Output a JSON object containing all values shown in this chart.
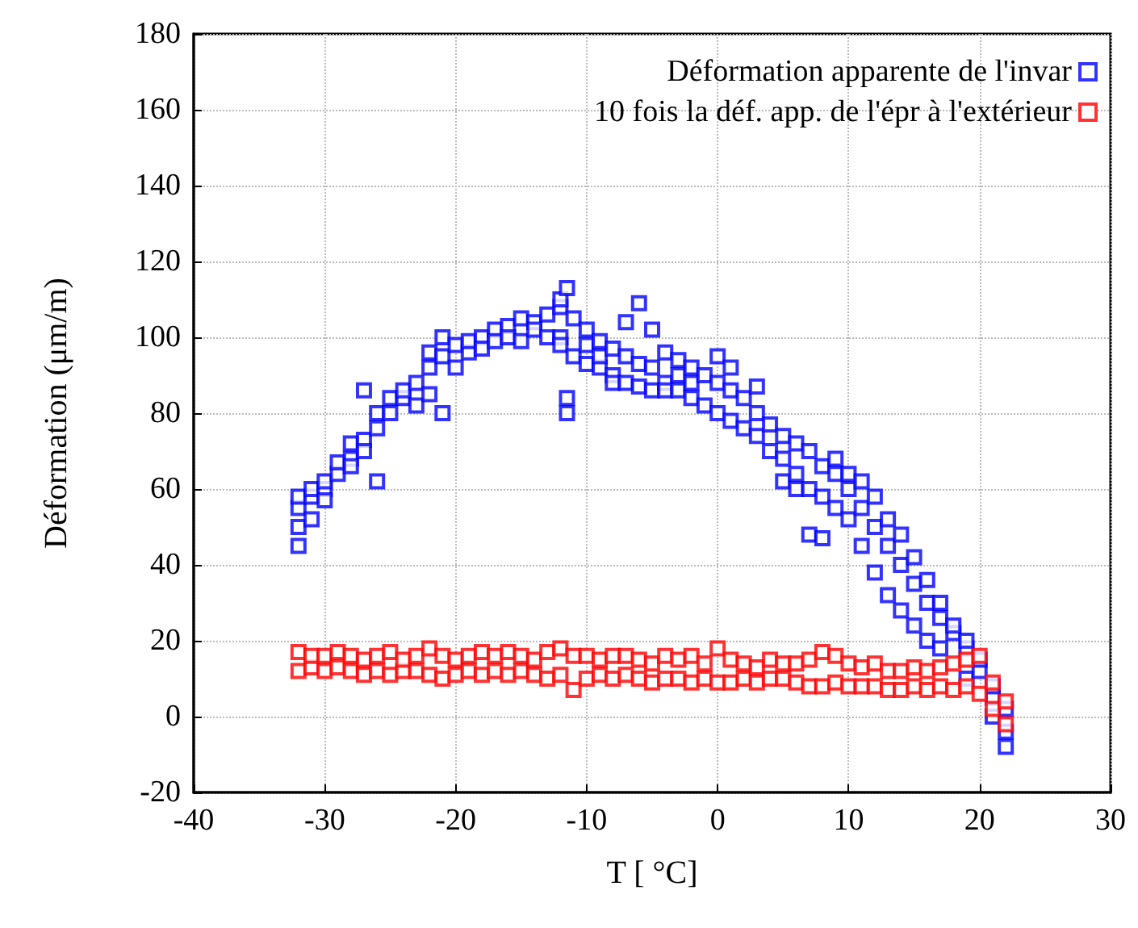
{
  "chart_data": {
    "type": "scatter",
    "xlabel": "T [ °C]",
    "ylabel": "Déformation (μm/m)",
    "xlim": [
      -40,
      30
    ],
    "xticks": [
      -40,
      -30,
      -20,
      -10,
      0,
      10,
      20,
      30
    ],
    "ylim": [
      -20,
      180
    ],
    "yticks": [
      -20,
      0,
      20,
      40,
      60,
      80,
      100,
      120,
      140,
      160,
      180
    ],
    "grid": true,
    "legend": "top right",
    "marker": "square",
    "series": [
      {
        "name": "Déformation apparente de l'invar",
        "color": "#0000ff",
        "x": [
          -32,
          -32,
          -32,
          -32,
          -31,
          -31,
          -31,
          -30,
          -30,
          -30,
          -29,
          -29,
          -28,
          -28,
          -28,
          -27,
          -27,
          -27,
          -26,
          -26,
          -26,
          -25,
          -25,
          -24,
          -24,
          -23,
          -23,
          -22,
          -22,
          -22,
          -21,
          -21,
          -21,
          -20,
          -20,
          -19,
          -19,
          -18,
          -18,
          -17,
          -17,
          -16,
          -16,
          -15,
          -15,
          -14,
          -14,
          -13,
          -13,
          -12,
          -12,
          -12,
          -12,
          -11.5,
          -11.5,
          -11.5,
          -11,
          -11,
          -10,
          -10,
          -10,
          -9,
          -9,
          -9,
          -8,
          -8,
          -8,
          -7,
          -7,
          -7,
          -6,
          -6,
          -6,
          -5,
          -5,
          -5,
          -4,
          -4,
          -4,
          -3,
          -3,
          -3,
          -2,
          -2,
          -2,
          -1,
          -1,
          0,
          0,
          0,
          1,
          1,
          1,
          2,
          2,
          3,
          3,
          3,
          4,
          4,
          5,
          5,
          5,
          6,
          6,
          6,
          7,
          7,
          7,
          8,
          8,
          8,
          9,
          9,
          9,
          10,
          10,
          10,
          11,
          11,
          11,
          12,
          12,
          12,
          13,
          13,
          13,
          14,
          14,
          14,
          15,
          15,
          15,
          16,
          16,
          16,
          17,
          17,
          17,
          18,
          18,
          19,
          19,
          19,
          20,
          20,
          21,
          21,
          21,
          22,
          22,
          22
        ],
        "values": [
          45,
          50,
          55,
          58,
          52,
          58,
          60,
          60,
          62,
          57,
          64,
          67,
          68,
          66,
          72,
          73,
          70,
          86,
          76,
          80,
          62,
          80,
          84,
          84,
          86,
          88,
          82,
          92,
          85,
          96,
          100,
          95,
          80,
          98,
          92,
          96,
          99,
          100,
          97,
          102,
          99,
          103,
          100,
          105,
          99,
          104,
          102,
          106,
          100,
          108,
          100,
          98,
          110,
          113,
          80,
          84,
          105,
          95,
          98,
          102,
          93,
          99,
          92,
          95,
          97,
          90,
          88,
          95,
          88,
          104,
          93,
          87,
          109,
          92,
          86,
          102,
          96,
          88,
          86,
          94,
          86,
          90,
          92,
          88,
          84,
          90,
          82,
          88,
          80,
          95,
          86,
          78,
          92,
          84,
          76,
          80,
          74,
          87,
          77,
          70,
          74,
          68,
          62,
          72,
          64,
          60,
          70,
          60,
          48,
          66,
          58,
          47,
          64,
          55,
          68,
          60,
          52,
          64,
          55,
          45,
          62,
          50,
          38,
          58,
          45,
          32,
          52,
          40,
          28,
          48,
          35,
          24,
          42,
          30,
          20,
          36,
          26,
          18,
          30,
          22,
          24,
          18,
          10,
          20,
          12,
          15,
          5,
          0,
          8,
          -4,
          -8,
          2
        ]
      },
      {
        "name": "10 fois la déf. app. de l'épr à l'extérieur",
        "color": "#ff0000",
        "x": [
          -32,
          -32,
          -31,
          -31,
          -30,
          -30,
          -29,
          -29,
          -28,
          -28,
          -27,
          -27,
          -26,
          -26,
          -25,
          -25,
          -24,
          -24,
          -23,
          -23,
          -22,
          -22,
          -21,
          -21,
          -20,
          -20,
          -19,
          -19,
          -18,
          -18,
          -17,
          -17,
          -16,
          -16,
          -15,
          -15,
          -14,
          -14,
          -13,
          -13,
          -12,
          -12,
          -11,
          -11,
          -10,
          -10,
          -9,
          -9,
          -8,
          -8,
          -7,
          -7,
          -6,
          -6,
          -5,
          -5,
          -4,
          -4,
          -3,
          -3,
          -2,
          -2,
          -1,
          -1,
          0,
          0,
          1,
          1,
          2,
          2,
          3,
          3,
          4,
          4,
          5,
          5,
          6,
          6,
          7,
          7,
          8,
          8,
          9,
          9,
          10,
          10,
          11,
          11,
          12,
          12,
          13,
          13,
          14,
          14,
          15,
          15,
          16,
          16,
          17,
          17,
          18,
          18,
          19,
          19,
          20,
          20,
          21,
          21,
          22,
          22
        ],
        "values": [
          12,
          17,
          13,
          16,
          12,
          16,
          13,
          17,
          12,
          16,
          11,
          15,
          12,
          16,
          11,
          17,
          12,
          15,
          12,
          16,
          11,
          18,
          10,
          16,
          11,
          15,
          12,
          16,
          11,
          17,
          12,
          16,
          11,
          17,
          12,
          16,
          11,
          15,
          10,
          17,
          11,
          18,
          7,
          16,
          10,
          16,
          11,
          15,
          10,
          16,
          11,
          16,
          10,
          15,
          9,
          14,
          10,
          16,
          10,
          15,
          9,
          16,
          10,
          14,
          9,
          18,
          9,
          15,
          10,
          14,
          9,
          13,
          10,
          15,
          10,
          14,
          9,
          14,
          8,
          15,
          8,
          17,
          9,
          16,
          8,
          14,
          8,
          13,
          8,
          14,
          7,
          12,
          7,
          12,
          8,
          13,
          7,
          12,
          8,
          13,
          7,
          14,
          8,
          15,
          6,
          16,
          2,
          9,
          -2,
          4
        ]
      }
    ]
  }
}
